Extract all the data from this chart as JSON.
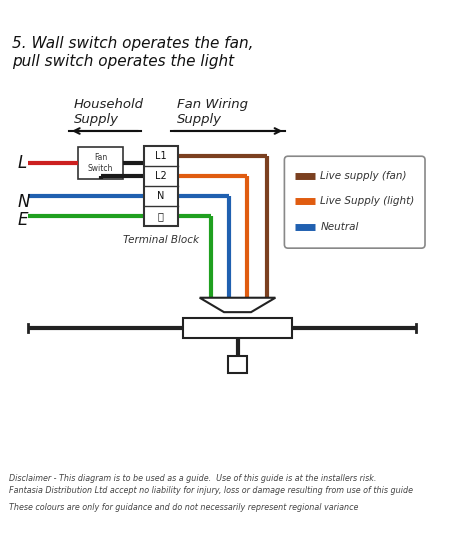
{
  "title_line1": "5. Wall switch operates the fan,",
  "title_line2": "pull switch operates the light",
  "legend_items": [
    {
      "label": "Live supply (fan)",
      "color": "#7B4020"
    },
    {
      "label": "Live Supply (light)",
      "color": "#E05C10"
    },
    {
      "label": "Neutral",
      "color": "#2060B0"
    }
  ],
  "disclaimer1": "Disclaimer - This diagram is to be used as a guide.  Use of this guide is at the installers risk.",
  "disclaimer2": "Fantasia Distribution Ltd accept no liability for injury, loss or damage resulting from use of this guide",
  "disclaimer3": "These colours are only for guidance and do not necessarily represent regional variance",
  "bg_color": "#FFFFFF",
  "wire_colors": {
    "red": "#CC2020",
    "black": "#1A1A1A",
    "blue": "#2060B0",
    "green": "#20A020",
    "brown": "#7B4020",
    "orange": "#E05C10"
  },
  "fig_w": 4.74,
  "fig_h": 5.54,
  "dpi": 100
}
